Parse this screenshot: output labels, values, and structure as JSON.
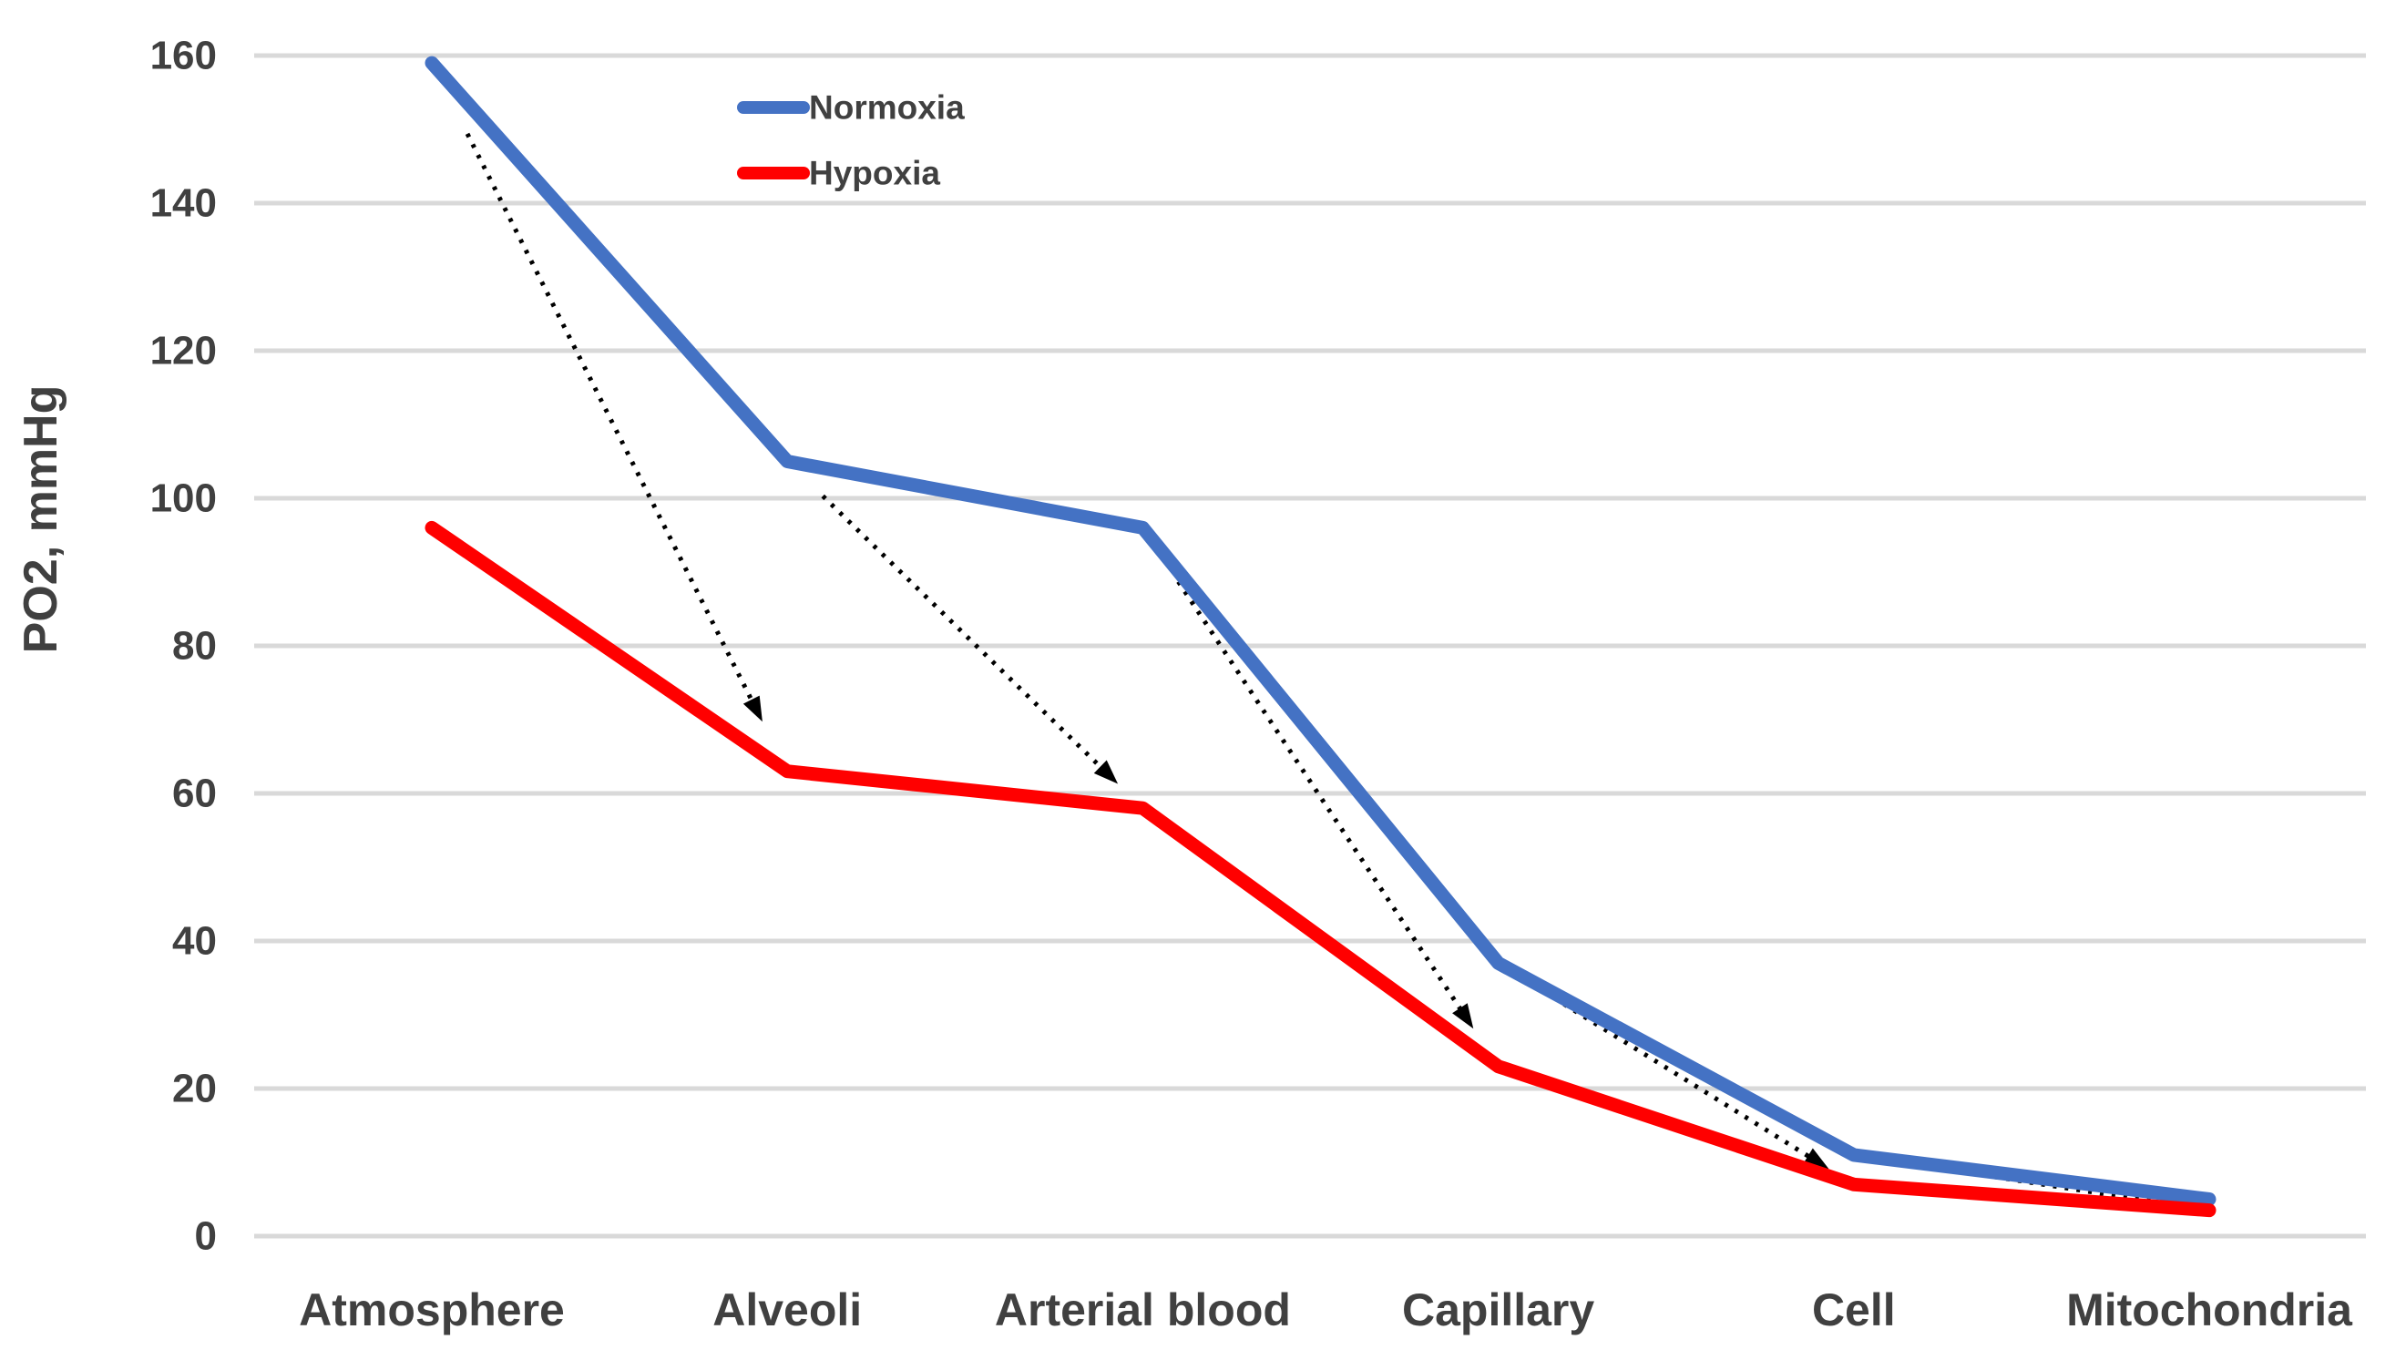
{
  "chart_data": {
    "type": "line",
    "title": "",
    "categories": [
      "Atmosphere",
      "Alveoli",
      "Arterial blood",
      "Capillary",
      "Cell",
      "Mitochondria"
    ],
    "series": [
      {
        "name": "Normoxia",
        "color": "#4472C4",
        "values": [
          159,
          105,
          96,
          37,
          11,
          5
        ]
      },
      {
        "name": "Hypoxia",
        "color": "#FF0000",
        "values": [
          96,
          63,
          58,
          23,
          7,
          3.5
        ]
      }
    ],
    "xlabel": "",
    "ylabel": "PO2, mmHg",
    "ylim": [
      0,
      160
    ],
    "yticks": [
      0,
      20,
      40,
      60,
      80,
      100,
      120,
      140,
      160
    ],
    "grid": true,
    "legend_position": "top-left-inside",
    "annotations": {
      "arrows": [
        {
          "from_series": 0,
          "from_index": 0,
          "to_series": 1,
          "to_index": 1
        },
        {
          "from_series": 0,
          "from_index": 1,
          "to_series": 1,
          "to_index": 2
        },
        {
          "from_series": 0,
          "from_index": 2,
          "to_series": 1,
          "to_index": 3
        },
        {
          "from_series": 0,
          "from_index": 3,
          "to_series": 1,
          "to_index": 4
        },
        {
          "from_series": 0,
          "from_index": 4,
          "to_series": 1,
          "to_index": 5
        }
      ],
      "arrow_style": "dotted-black"
    },
    "colors": {
      "gridline": "#d9d9d9",
      "text": "#404040",
      "arrow": "#000000",
      "background": "#ffffff"
    }
  }
}
